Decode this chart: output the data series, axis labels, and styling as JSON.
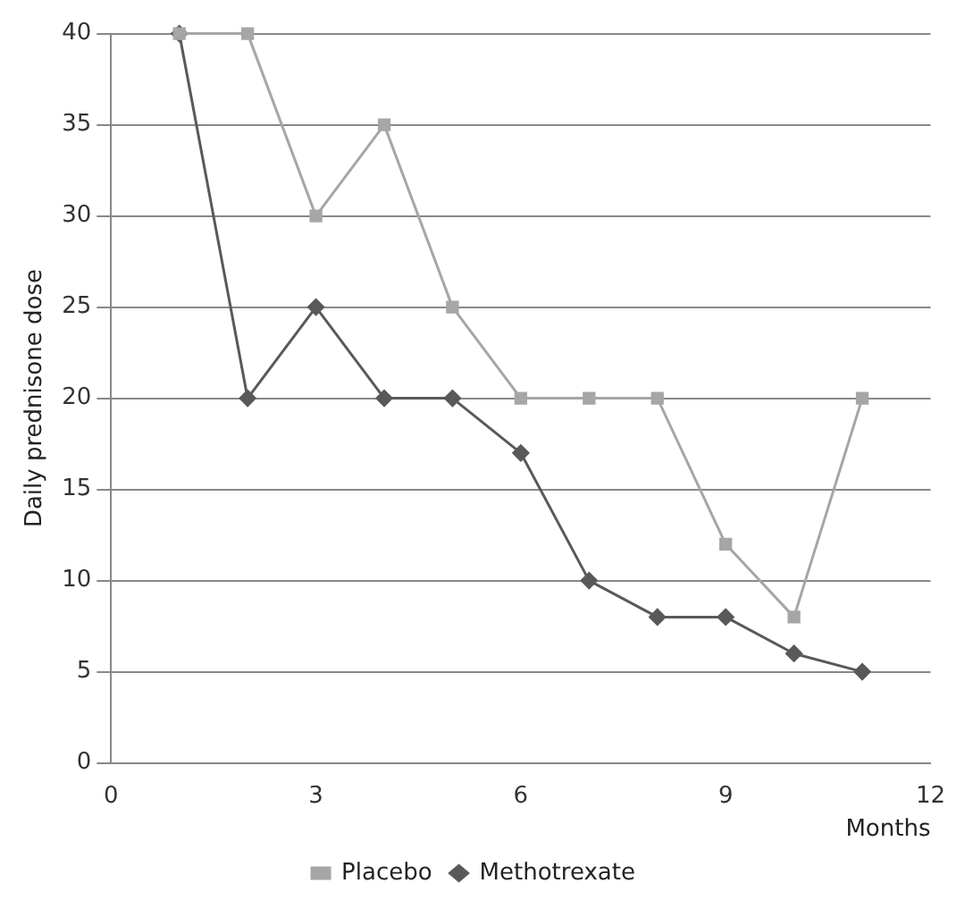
{
  "chart_data": {
    "type": "line",
    "xlabel": "Months",
    "ylabel": "Daily prednisone dose",
    "xlim": [
      0,
      12
    ],
    "xticks": [
      0,
      3,
      6,
      9,
      12
    ],
    "ylim": [
      0,
      40
    ],
    "yticks": [
      0,
      5,
      10,
      15,
      20,
      25,
      30,
      35,
      40
    ],
    "grid": "y",
    "legend": "bottom",
    "line_style": "solid",
    "series": [
      {
        "name": "Methotrexate",
        "color": "#595959",
        "marker": "diamond",
        "x": [
          1,
          2,
          3,
          4,
          5,
          6,
          7,
          8,
          9,
          10,
          11
        ],
        "values": [
          40,
          20,
          25,
          20,
          20,
          17,
          10,
          8,
          8,
          6,
          5
        ]
      },
      {
        "name": "Placebo",
        "color": "#a6a6a6",
        "marker": "square",
        "x": [
          1,
          2,
          3,
          4,
          5,
          6,
          7,
          8,
          9,
          10,
          11
        ],
        "values": [
          40,
          40,
          30,
          35,
          25,
          20,
          20,
          20,
          12,
          8,
          20
        ]
      }
    ]
  }
}
